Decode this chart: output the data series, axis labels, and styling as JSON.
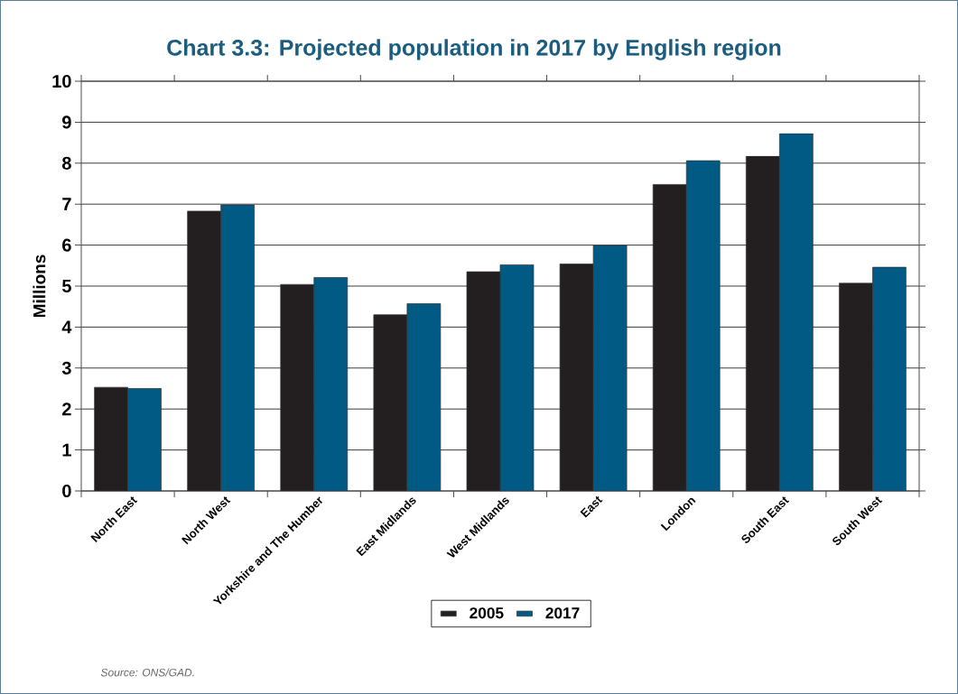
{
  "chart_data": {
    "type": "bar",
    "title": "Chart 3.3: Projected population in 2017 by English region",
    "ylabel": "Millions",
    "categories": [
      "North East",
      "North West",
      "Yorkshire and The Humber",
      "East Midlands",
      "West Midlands",
      "East",
      "London",
      "South East",
      "South West"
    ],
    "series": [
      {
        "name": "2005",
        "color": "#231f20",
        "values": [
          2.53,
          6.83,
          5.04,
          4.3,
          5.35,
          5.54,
          7.48,
          8.17,
          5.07
        ]
      },
      {
        "name": "2017",
        "color": "#005a84",
        "values": [
          2.5,
          6.98,
          5.21,
          4.57,
          5.52,
          5.99,
          8.06,
          8.72,
          5.46
        ]
      }
    ],
    "ylim": [
      0,
      10
    ],
    "yticks": [
      0,
      1,
      2,
      3,
      4,
      5,
      6,
      7,
      8,
      9,
      10
    ],
    "grid": "y",
    "legend": "bottom",
    "annotations": [
      "Source: ONS/GAD."
    ]
  }
}
